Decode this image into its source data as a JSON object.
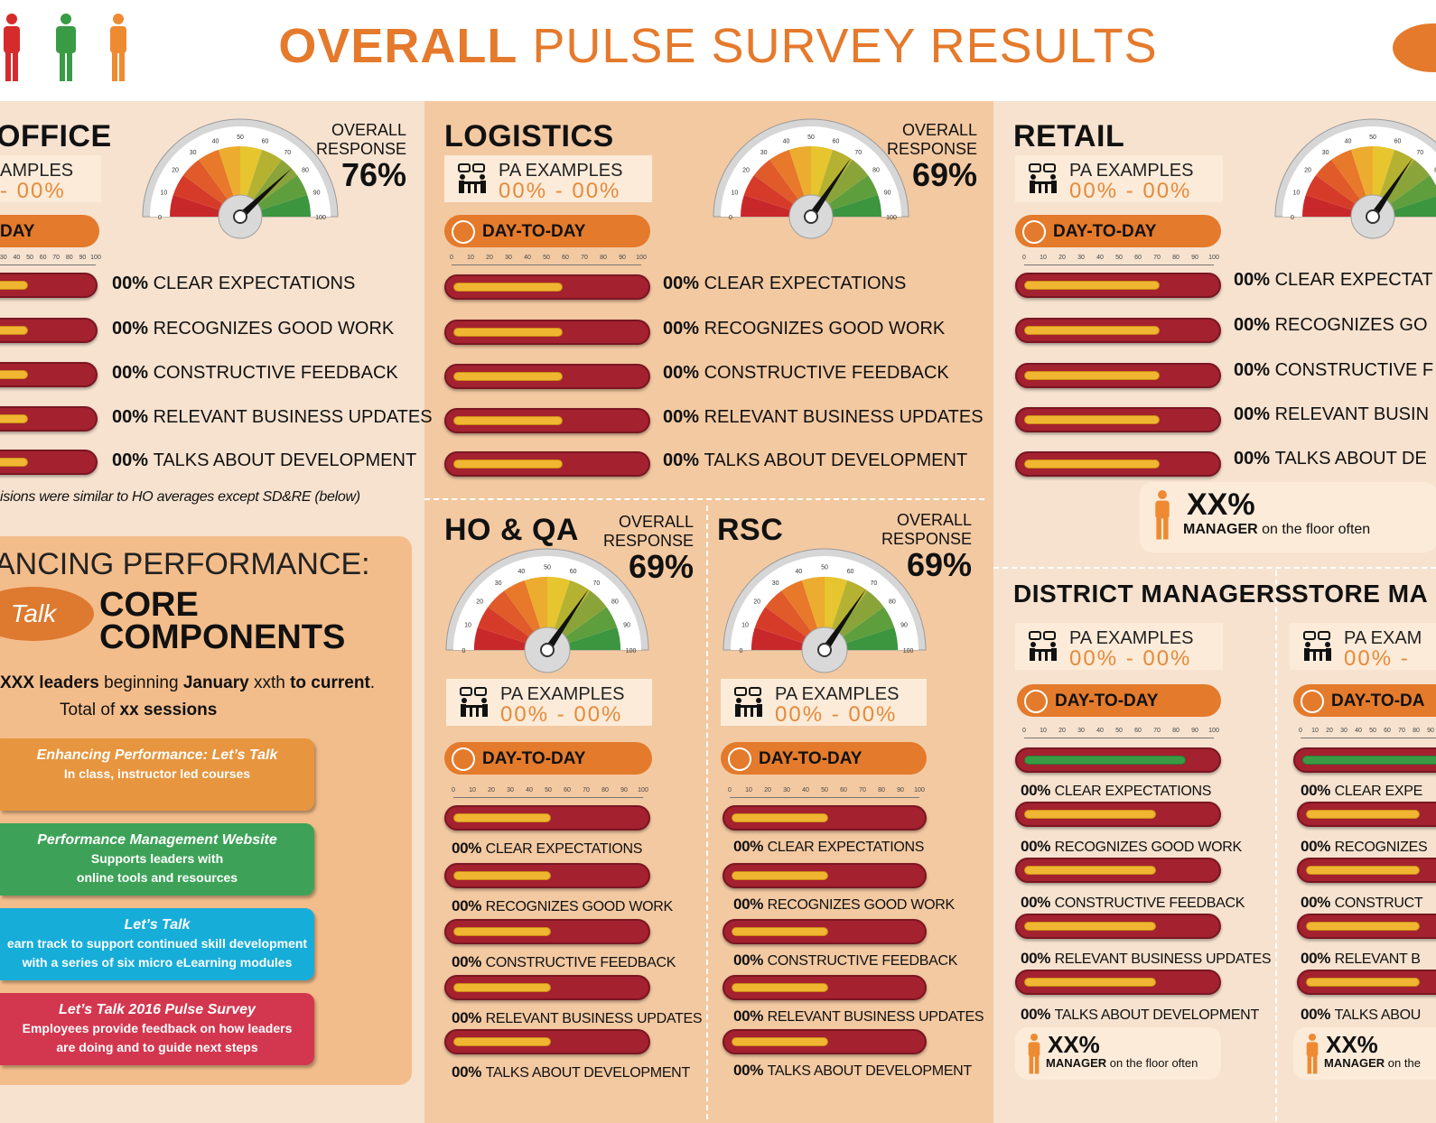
{
  "header": {
    "title_bold": "OVERALL",
    "title_rest": " PULSE SURVEY RESULTS"
  },
  "colors": {
    "accent": "#e57a2c",
    "bar_red": "#a4212f",
    "fill_yellow": "#f0b631",
    "fill_green": "#3a9b45"
  },
  "labels": {
    "overall": "OVERALL",
    "response": "RESPONSE",
    "pa_examples": "PA EXAMPLES",
    "pa_range": "00% - 00%",
    "day_to_day": "DAY-TO-DAY",
    "pct": "00%",
    "items": [
      "CLEAR EXPECTATIONS",
      "RECOGNIZES GOOD WORK",
      "CONSTRUCTIVE FEEDBACK",
      "RELEVANT BUSINESS UPDATES",
      "TALKS ABOUT DEVELOPMENT"
    ],
    "scale_ticks": [
      "0",
      "10",
      "20",
      "30",
      "40",
      "50",
      "60",
      "70",
      "80",
      "90",
      "100"
    ],
    "gauge_ticks": [
      "0",
      "10",
      "20",
      "30",
      "40",
      "50",
      "60",
      "70",
      "80",
      "90",
      "100"
    ],
    "mgr_pct": "XX%",
    "mgr_word": "MANAGER",
    "mgr_rest": " on the floor often"
  },
  "panels": {
    "office": {
      "name": "OFFICE",
      "response": "76%",
      "pa_partial": "AMPLES",
      "pa_range_partial": "- 00%",
      "dtd_partial": "DAY",
      "gauge_value": 76
    },
    "logistics": {
      "name": "LOGISTICS",
      "response": "69%",
      "gauge_value": 69
    },
    "retail": {
      "name": "RETAIL",
      "gauge_value": 69,
      "items_partial": [
        "CLEAR EXPECTAT",
        "RECOGNIZES GO",
        "CONSTRUCTIVE F",
        "RELEVANT BUSIN",
        "TALKS ABOUT DE"
      ]
    },
    "hoqa": {
      "name": "HO & QA",
      "response": "69%",
      "gauge_value": 69
    },
    "rsc": {
      "name": "RSC",
      "response": "69%",
      "gauge_value": 69
    },
    "district": {
      "name": "DISTRICT MANAGERS"
    },
    "store": {
      "name": "STORE MA",
      "pa_partial": "PA EXAM",
      "pa_range_partial": "00% -",
      "dtd_partial": "DAY-TO-DA",
      "items_partial": [
        "CLEAR EXPE",
        "RECOGNIZES",
        "CONSTRUCT",
        "RELEVANT B",
        "TALKS ABOU"
      ],
      "mgr_rest_partial": " on the"
    }
  },
  "office_note": "isions were similar to HO averages except SD&RE (below)",
  "enhancing": {
    "heading": "ANCING PERFORMANCE:",
    "talk": "Talk",
    "core1": "CORE",
    "core2": "COMPONENTS",
    "line1_a": "XXX leaders",
    "line1_b": " beginning ",
    "line1_c": "January",
    "line1_d": " xxth ",
    "line1_e": "to current",
    "line1_f": ".",
    "line2_a": "Total of ",
    "line2_b": "xx",
    "line2_c": " sessions",
    "components": [
      {
        "title": "Enhancing Performance: Let’s Talk",
        "sub": [
          "In class, instructor led courses"
        ]
      },
      {
        "title": "Performance Management Website",
        "sub": [
          "Supports leaders with",
          "online tools and resources"
        ]
      },
      {
        "title": "Let’s Talk",
        "sub": [
          "earn track to support  continued skill development",
          "with a series of six micro eLearning modules"
        ]
      },
      {
        "title": "Let’s Talk 2016 Pulse Survey",
        "sub": [
          "Employees provide feedback on how leaders",
          "are doing and to guide next steps"
        ]
      }
    ]
  }
}
